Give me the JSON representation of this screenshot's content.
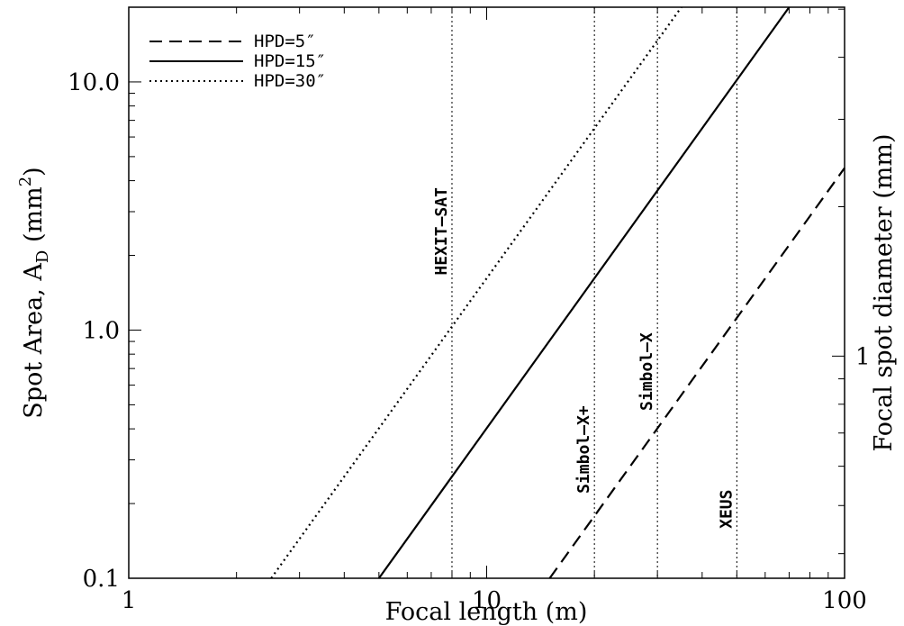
{
  "chart_data": {
    "type": "line",
    "x_scale": "log",
    "y_scale": "log",
    "xlim": [
      1,
      100
    ],
    "ylim": [
      0.1,
      20
    ],
    "xlabel": "Focal length (m)",
    "ylabel_main": "Spot Area, A",
    "ylabel_sub": "D",
    "ylabel_unit": "(mm",
    "ylabel_sup": "2",
    "ylabel_close": ")",
    "y2label": "Focal spot diameter (mm)",
    "x_ticks": [
      {
        "value": 1,
        "label": "1"
      },
      {
        "value": 10,
        "label": "10"
      },
      {
        "value": 100,
        "label": "100"
      }
    ],
    "y_ticks": [
      {
        "value": 0.1,
        "label": "0.1"
      },
      {
        "value": 1,
        "label": "1.0"
      },
      {
        "value": 10,
        "label": "10.0"
      }
    ],
    "y2_ticks": [
      {
        "value": 1,
        "label": "1"
      }
    ],
    "legend_position": "top-left",
    "series": [
      {
        "name": "HPD=5″",
        "style": "dashed",
        "x": [
          15,
          100
        ],
        "y": [
          0.1,
          4.5
        ]
      },
      {
        "name": "HPD=15″",
        "style": "solid",
        "x": [
          5,
          70
        ],
        "y": [
          0.1,
          20
        ]
      },
      {
        "name": "HPD=30″",
        "style": "dotted",
        "x": [
          2.5,
          35
        ],
        "y": [
          0.1,
          20
        ]
      }
    ],
    "vlines": [
      {
        "x": 8,
        "label": "HEXIT–SAT",
        "label_y": 2.5
      },
      {
        "x": 20,
        "label": "Simbol–X+",
        "label_y": 0.33
      },
      {
        "x": 30,
        "label": "Simbol–X",
        "label_y": 0.68
      },
      {
        "x": 50,
        "label": "XEUS",
        "label_y": 0.19
      }
    ]
  }
}
